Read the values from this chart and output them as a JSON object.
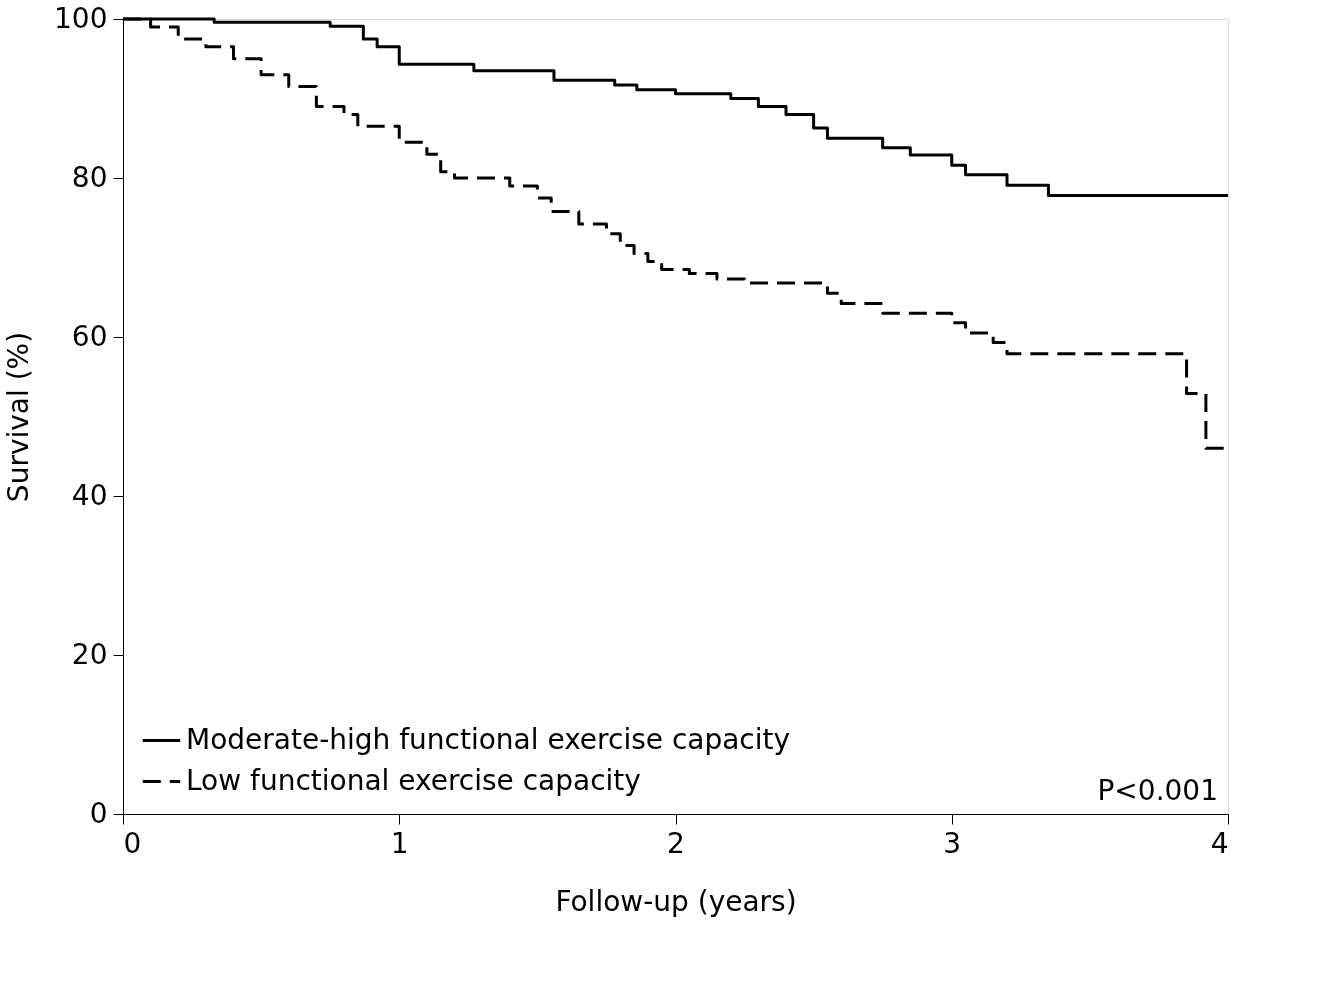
{
  "chart_data": {
    "type": "step",
    "xlabel": "Follow-up (years)",
    "ylabel": "Survival (%)",
    "xlim": [
      0,
      4
    ],
    "ylim": [
      0,
      100
    ],
    "xticks": [
      0,
      1,
      2,
      3,
      4
    ],
    "yticks": [
      0,
      20,
      40,
      60,
      80,
      100
    ],
    "grid": false,
    "legend": "bottom left",
    "annotations": [
      "P<0.001"
    ],
    "series": [
      {
        "name": "Moderate-high functional exercise capacity",
        "color": "#000000",
        "line_style": "solid",
        "x": [
          0,
          0.33,
          0.75,
          0.87,
          0.92,
          1.0,
          1.27,
          1.56,
          1.78,
          1.86,
          2.0,
          2.2,
          2.3,
          2.4,
          2.5,
          2.55,
          2.75,
          2.85,
          3.0,
          3.05,
          3.2,
          3.35,
          4.0
        ],
        "values": [
          100,
          99.6,
          99.1,
          97.5,
          96.5,
          94.3,
          93.5,
          92.3,
          91.7,
          91.1,
          90.6,
          90,
          89,
          88,
          86.3,
          85,
          83.8,
          82.9,
          81.6,
          80.4,
          79.1,
          77.8,
          77.8
        ]
      },
      {
        "name": "Low functional exercise capacity",
        "color": "#000000",
        "line_style": "dashed",
        "x": [
          0,
          0.1,
          0.2,
          0.3,
          0.4,
          0.5,
          0.6,
          0.7,
          0.8,
          0.85,
          1.0,
          1.1,
          1.15,
          1.2,
          1.4,
          1.5,
          1.55,
          1.65,
          1.75,
          1.8,
          1.85,
          1.9,
          1.95,
          2.05,
          2.15,
          2.25,
          2.55,
          2.6,
          2.75,
          3.0,
          3.05,
          3.15,
          3.2,
          3.85,
          3.92,
          4.0
        ],
        "values": [
          100,
          99,
          97.5,
          96.5,
          95,
          93,
          91.5,
          89,
          88,
          86.5,
          84.5,
          83,
          80.8,
          80,
          79,
          77.5,
          75.8,
          74.2,
          73,
          71.5,
          70.5,
          69.5,
          68.5,
          68,
          67.3,
          66.8,
          65.5,
          64.2,
          63,
          61.8,
          60.5,
          59.3,
          57.9,
          52.9,
          46,
          46
        ]
      }
    ]
  }
}
